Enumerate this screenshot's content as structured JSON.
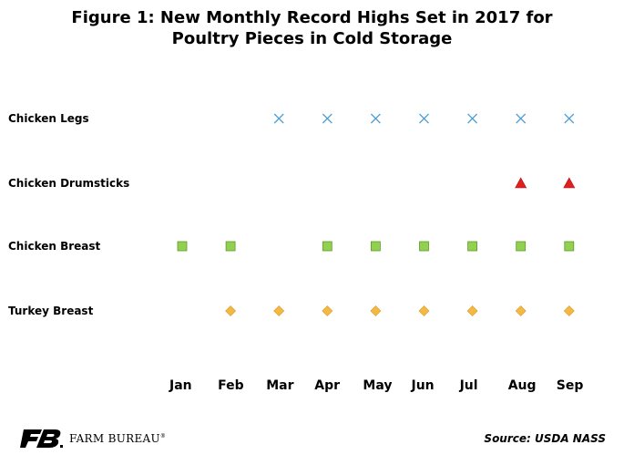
{
  "chart_data": {
    "type": "scatter",
    "title_line1": "Figure 1: New Monthly Record Highs Set in 2017 for",
    "title_line2": "Poultry Pieces in Cold Storage",
    "categories": [
      "Jan",
      "Feb",
      "Mar",
      "Apr",
      "May",
      "Jun",
      "Jul",
      "Aug",
      "Sep"
    ],
    "series": [
      {
        "name": "Chicken Legs",
        "marker": "x",
        "color": "#4f9fd3",
        "months": [
          "Mar",
          "Apr",
          "May",
          "Jun",
          "Jul",
          "Aug",
          "Sep"
        ]
      },
      {
        "name": "Chicken Drumsticks",
        "marker": "triangle",
        "color": "#e02020",
        "months": [
          "Aug",
          "Sep"
        ]
      },
      {
        "name": "Chicken Breast",
        "marker": "square",
        "color": "#92d050",
        "months": [
          "Jan",
          "Feb",
          "Apr",
          "May",
          "Jun",
          "Jul",
          "Aug",
          "Sep"
        ]
      },
      {
        "name": "Turkey Breast",
        "marker": "diamond",
        "color": "#f4b942",
        "months": [
          "Feb",
          "Mar",
          "Apr",
          "May",
          "Jun",
          "Jul",
          "Aug",
          "Sep"
        ]
      }
    ],
    "grid": false,
    "legend": "none"
  },
  "footer": {
    "logo_text": "FARM BUREAU",
    "logo_reg": "®",
    "source": "Source: USDA NASS"
  }
}
